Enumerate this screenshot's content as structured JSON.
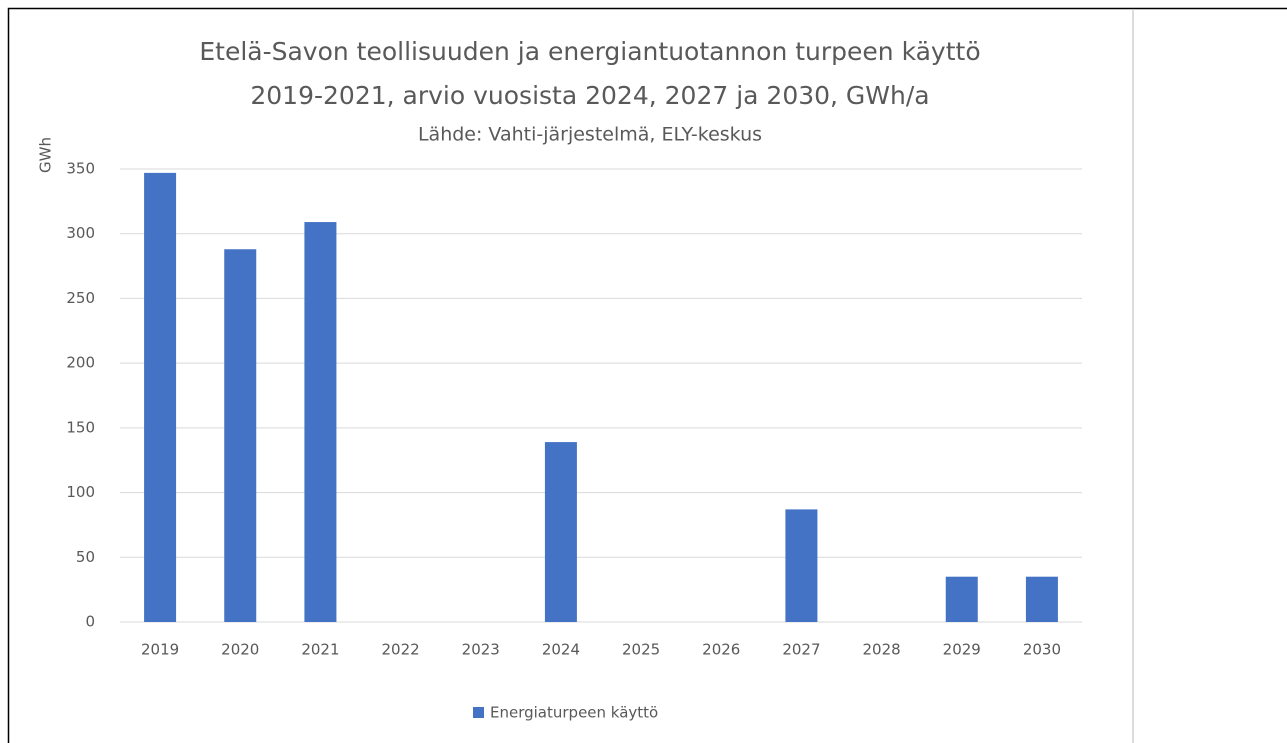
{
  "chart_data": {
    "type": "bar",
    "title": [
      "Etelä-Savon teollisuuden ja energiantuotannon turpeen käyttö",
      "2019-2021, arvio vuosista 2024, 2027 ja 2030, GWh/a"
    ],
    "subtitle": "Lähde: Vahti-järjestelmä, ELY-keskus",
    "y_label": "GWh",
    "categories": [
      "2019",
      "2020",
      "2021",
      "2022",
      "2023",
      "2024",
      "2025",
      "2026",
      "2027",
      "2028",
      "2029",
      "2030"
    ],
    "series": [
      {
        "name": "Energiaturpeen käyttö",
        "color": "#4472c4",
        "values": [
          347,
          288,
          309,
          null,
          null,
          139,
          null,
          null,
          87,
          null,
          35,
          35
        ]
      }
    ],
    "ylim": [
      0,
      350
    ],
    "yticks": [
      0,
      50,
      100,
      150,
      200,
      250,
      300,
      350
    ],
    "grid": true,
    "legend": "bottom"
  }
}
